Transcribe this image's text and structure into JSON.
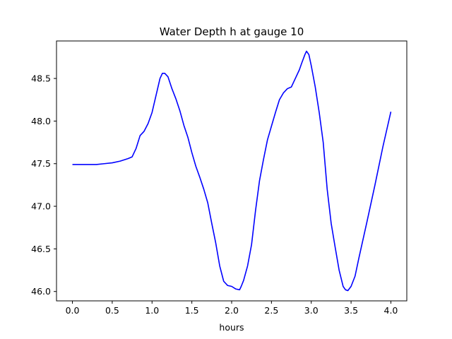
{
  "chart_data": {
    "type": "line",
    "title": "Water Depth h at gauge 10",
    "xlabel": "hours",
    "ylabel": "",
    "xlim": [
      -0.2,
      4.2
    ],
    "ylim": [
      45.89,
      48.94
    ],
    "xticks": [
      0.0,
      0.5,
      1.0,
      1.5,
      2.0,
      2.5,
      3.0,
      3.5,
      4.0
    ],
    "xtick_labels": [
      "0.0",
      "0.5",
      "1.0",
      "1.5",
      "2.0",
      "2.5",
      "3.0",
      "3.5",
      "4.0"
    ],
    "yticks": [
      46.0,
      46.5,
      47.0,
      47.5,
      48.0,
      48.5
    ],
    "ytick_labels": [
      "46.0",
      "46.5",
      "47.0",
      "47.5",
      "48.0",
      "48.5"
    ],
    "grid": false,
    "series": [
      {
        "color": "#0000ff",
        "x": [
          0.0,
          0.1,
          0.2,
          0.3,
          0.4,
          0.5,
          0.6,
          0.7,
          0.75,
          0.8,
          0.85,
          0.9,
          0.95,
          1.0,
          1.05,
          1.1,
          1.13,
          1.16,
          1.2,
          1.25,
          1.3,
          1.35,
          1.4,
          1.45,
          1.5,
          1.55,
          1.6,
          1.65,
          1.7,
          1.75,
          1.8,
          1.85,
          1.9,
          1.95,
          2.0,
          2.05,
          2.1,
          2.12,
          2.15,
          2.2,
          2.25,
          2.3,
          2.35,
          2.4,
          2.45,
          2.5,
          2.55,
          2.6,
          2.65,
          2.7,
          2.75,
          2.8,
          2.85,
          2.88,
          2.92,
          2.94,
          2.97,
          3.0,
          3.05,
          3.1,
          3.15,
          3.2,
          3.25,
          3.3,
          3.35,
          3.4,
          3.43,
          3.46,
          3.5,
          3.55,
          3.6,
          3.7,
          3.8,
          3.9,
          4.0
        ],
        "y": [
          47.49,
          47.49,
          47.49,
          47.49,
          47.5,
          47.51,
          47.53,
          47.56,
          47.58,
          47.68,
          47.83,
          47.88,
          47.97,
          48.1,
          48.3,
          48.5,
          48.56,
          48.56,
          48.52,
          48.38,
          48.26,
          48.12,
          47.95,
          47.81,
          47.63,
          47.47,
          47.34,
          47.2,
          47.04,
          46.8,
          46.57,
          46.3,
          46.12,
          46.07,
          46.06,
          46.03,
          46.02,
          46.06,
          46.13,
          46.3,
          46.55,
          46.95,
          47.3,
          47.55,
          47.78,
          47.94,
          48.1,
          48.25,
          48.33,
          48.38,
          48.4,
          48.5,
          48.6,
          48.68,
          48.78,
          48.82,
          48.78,
          48.65,
          48.4,
          48.1,
          47.75,
          47.2,
          46.8,
          46.52,
          46.25,
          46.06,
          46.02,
          46.01,
          46.06,
          46.18,
          46.4,
          46.82,
          47.25,
          47.7,
          48.11
        ]
      }
    ]
  }
}
